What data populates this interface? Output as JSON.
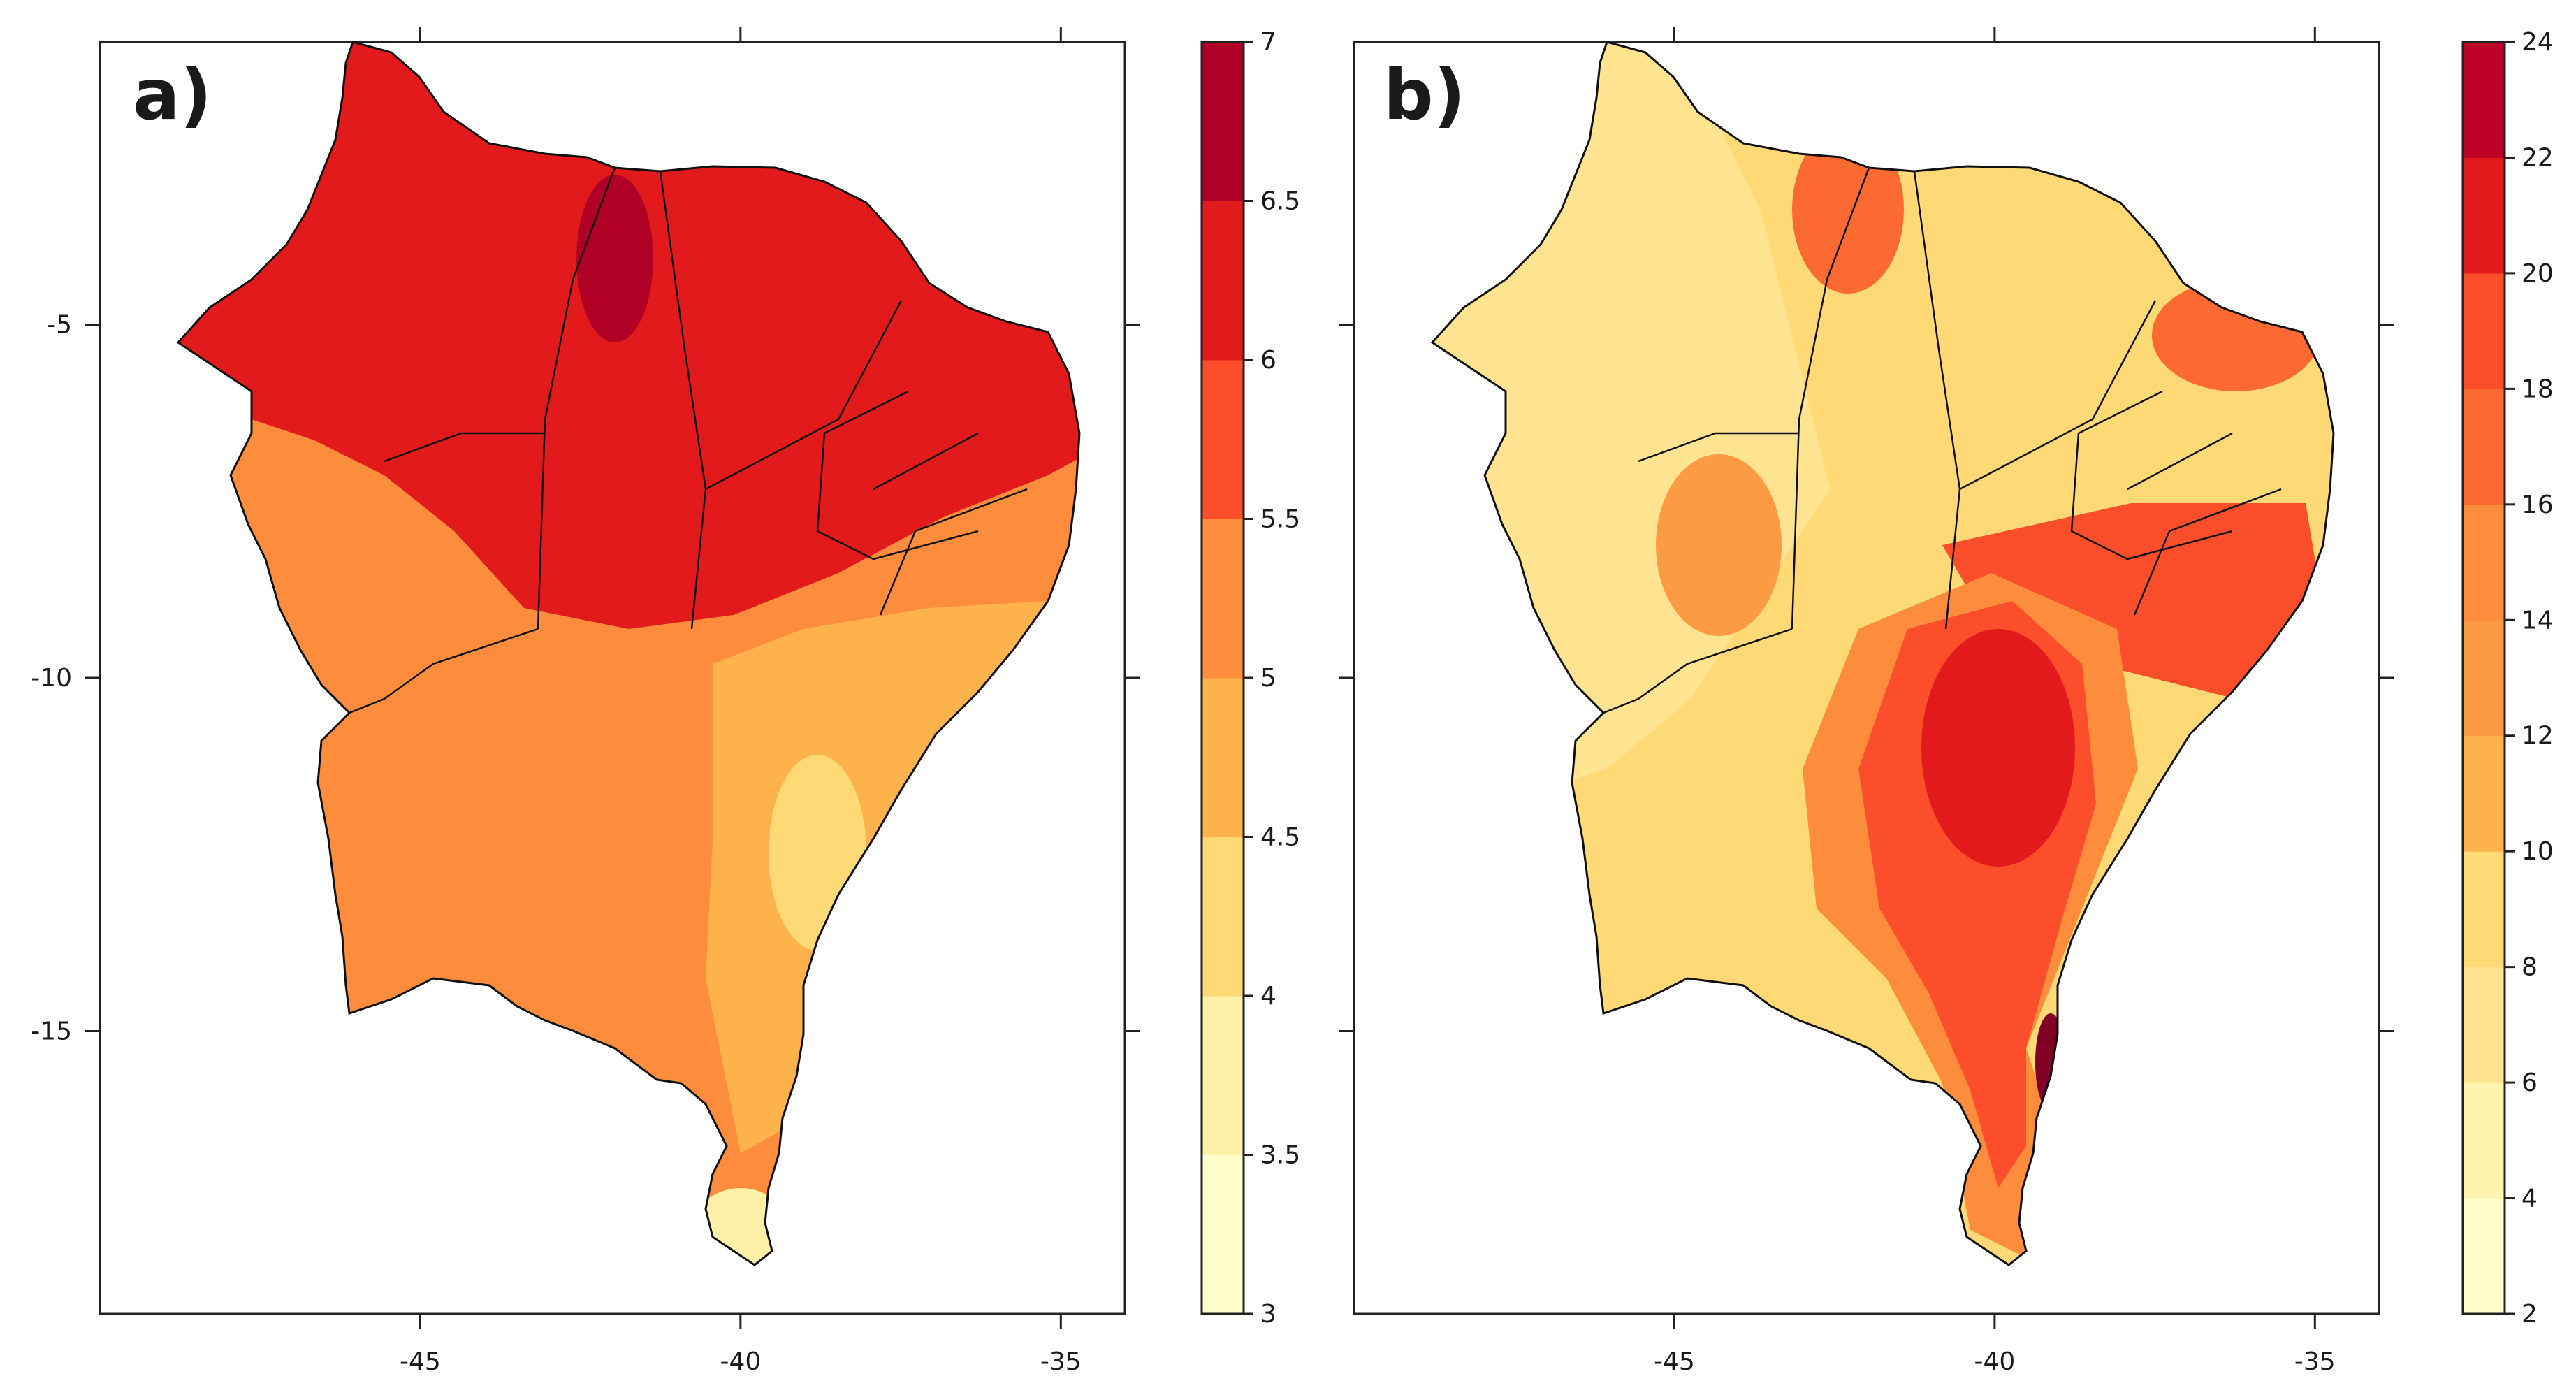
{
  "chart_data": [
    {
      "type": "filled-contour-map",
      "panel_label": "a)",
      "x_ticks": [
        -45,
        -40,
        -35
      ],
      "y_ticks": [
        -5,
        -10,
        -15
      ],
      "x_tick_labels": [
        "-45",
        "-40",
        "-35"
      ],
      "y_tick_labels": [
        "-5",
        "-10",
        "-15"
      ],
      "xlim": [
        -50,
        -34
      ],
      "ylim": [
        -19,
        -1
      ],
      "colorbar": {
        "levels": [
          3,
          3.5,
          4,
          4.5,
          5,
          5.5,
          6,
          6.5,
          7
        ],
        "labels": [
          "3",
          "3.5",
          "4",
          "4.5",
          "5",
          "5.5",
          "6",
          "6.5",
          "7"
        ],
        "colors": [
          "#ffffcc",
          "#fff0a8",
          "#fed976",
          "#feb24c",
          "#fd8d3c",
          "#fc4e2a",
          "#e31a1c",
          "#b10026"
        ]
      }
    },
    {
      "type": "filled-contour-map",
      "panel_label": "b)",
      "x_ticks": [
        -45,
        -40,
        -35
      ],
      "y_ticks": [
        -5,
        -10,
        -15
      ],
      "x_tick_labels": [
        "-45",
        "-40",
        "-35"
      ],
      "y_tick_labels": [
        "-5",
        "-10",
        "-15"
      ],
      "xlim": [
        -50,
        -34
      ],
      "ylim": [
        -19,
        -1
      ],
      "colorbar": {
        "levels": [
          2,
          4,
          6,
          8,
          10,
          12,
          14,
          16,
          18,
          20,
          22,
          24
        ],
        "labels": [
          "2",
          "4",
          "6",
          "8",
          "10",
          "12",
          "14",
          "16",
          "18",
          "20",
          "22",
          "24"
        ],
        "colors": [
          "#ffffcc",
          "#fff3b0",
          "#fee391",
          "#fed976",
          "#feb24c",
          "#fd9a44",
          "#fd8d3c",
          "#fc6a32",
          "#fc4e2a",
          "#e31a1c",
          "#bd0026",
          "#800026"
        ]
      }
    }
  ]
}
